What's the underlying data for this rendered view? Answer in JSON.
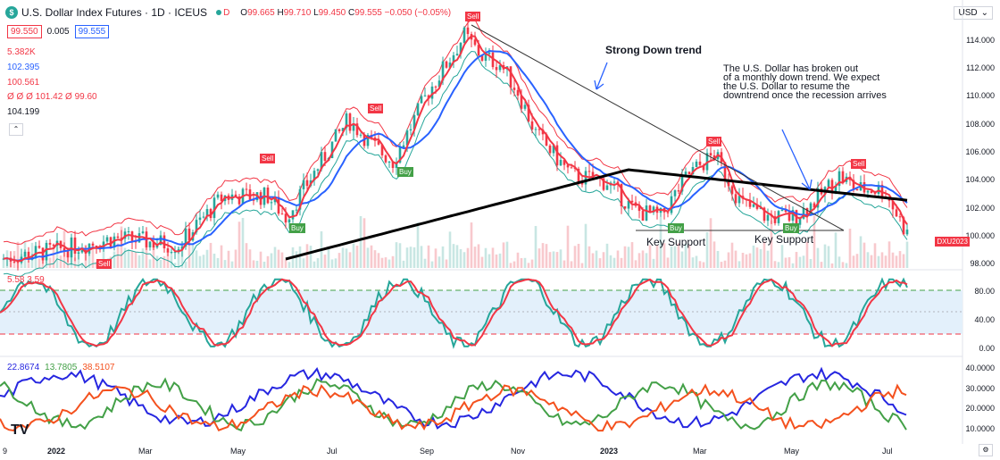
{
  "header": {
    "symbol_icon": "$",
    "title": "U.S. Dollar Index Futures · 1D · ICEUS",
    "timeframe_badge": "D",
    "ohlc": {
      "o_label": "O",
      "o": "99.665",
      "h_label": "H",
      "h": "99.710",
      "l_label": "L",
      "l": "99.450",
      "c_label": "C",
      "c": "99.555",
      "change": "−0.050 (−0.05%)"
    },
    "sell_price": "99.550",
    "spread": "0.005",
    "buy_price": "99.555"
  },
  "legend": {
    "vol": "5.382K",
    "ma1": "102.395",
    "ma2": "100.561",
    "ind": "Ø Ø Ø 101.42 Ø 99.60",
    "ma3": "104.199"
  },
  "currency": "USD",
  "price_axis": [
    "114.000",
    "112.000",
    "110.000",
    "108.000",
    "106.000",
    "104.000",
    "102.000",
    "100.000",
    "98.000"
  ],
  "stoch": {
    "values": "5.58  3.59",
    "axis": [
      "80.00",
      "40.00",
      "0.00"
    ]
  },
  "dmi": {
    "v1": "22.8674",
    "v2": "13.7805",
    "v3": "38.5107",
    "axis": [
      "40.0000",
      "30.0000",
      "20.0000",
      "10.0000"
    ]
  },
  "x_axis": [
    "9",
    "2022",
    "Mar",
    "May",
    "Jul",
    "Sep",
    "Nov",
    "2023",
    "Mar",
    "May",
    "Jul"
  ],
  "annotations": {
    "strong_down": "Strong Down trend",
    "broken_note": [
      "The U.S. Dollar has broken out",
      "of a monthly down trend. We expect",
      "the U.S. Dollar to resume the",
      "downtrend once the recession arrives"
    ],
    "key_support_1": "Key Support",
    "key_support_2": "Key Support",
    "sell": "Sell",
    "buy": "Buy"
  },
  "ticker_tag": "DXU2023",
  "colors": {
    "up": "#26a69a",
    "down": "#f23645",
    "ma_blue": "#2962ff",
    "ma_black": "#000000",
    "stoch_green": "#26a69a",
    "stoch_red": "#f23645",
    "dmi_blue": "#2626e0",
    "dmi_green": "#43a047",
    "dmi_orange": "#f4511e"
  }
}
